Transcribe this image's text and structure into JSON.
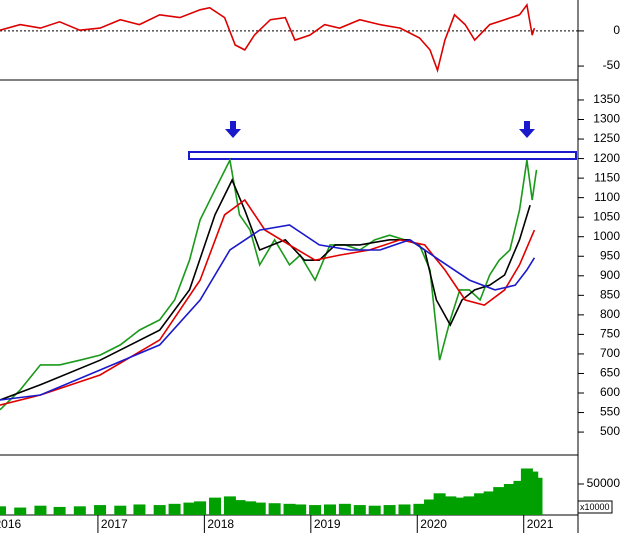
{
  "chart_data": [
    {
      "type": "line",
      "ylim": [
        -67,
        44
      ],
      "yticks": [
        0,
        -50
      ],
      "zero_line": true,
      "series": [
        {
          "color": "#dd0000",
          "x": [
            2016.08,
            2016.27,
            2016.46,
            2016.64,
            2016.83,
            2017.02,
            2017.21,
            2017.39,
            2017.58,
            2017.77,
            2017.96,
            2018.05,
            2018.19,
            2018.29,
            2018.38,
            2018.47,
            2018.62,
            2018.76,
            2018.85,
            2018.99,
            2019.13,
            2019.27,
            2019.46,
            2019.65,
            2019.84,
            2020.02,
            2020.12,
            2020.19,
            2020.26,
            2020.35,
            2020.45,
            2020.54,
            2020.68,
            2020.82,
            2020.96,
            2021.03,
            2021.08,
            2021.1
          ],
          "values": [
            1,
            9,
            4,
            13,
            1,
            4,
            16,
            9,
            23,
            19,
            30,
            33,
            19,
            -20,
            -27,
            -6,
            16,
            19,
            -13,
            -6,
            9,
            4,
            16,
            9,
            4,
            -10,
            -27,
            -56,
            -13,
            23,
            9,
            -13,
            9,
            16,
            23,
            37,
            -6,
            4
          ]
        }
      ]
    },
    {
      "type": "line",
      "ylim": [
        449,
        1396
      ],
      "yticks": [
        500,
        550,
        600,
        650,
        700,
        750,
        800,
        850,
        900,
        950,
        1000,
        1050,
        1100,
        1150,
        1200,
        1250,
        1300,
        1350
      ],
      "series": [
        {
          "color": "#1a9a1a",
          "x": [
            2016.08,
            2016.27,
            2016.46,
            2016.64,
            2016.83,
            2017.02,
            2017.21,
            2017.39,
            2017.58,
            2017.72,
            2017.86,
            2017.96,
            2018.1,
            2018.24,
            2018.33,
            2018.43,
            2018.52,
            2018.66,
            2018.8,
            2018.9,
            2019.04,
            2019.18,
            2019.32,
            2019.46,
            2019.6,
            2019.74,
            2019.88,
            2020.02,
            2020.12,
            2020.21,
            2020.31,
            2020.4,
            2020.49,
            2020.59,
            2020.68,
            2020.77,
            2020.87,
            2020.96,
            2021.03,
            2021.08,
            2021.12
          ],
          "values": [
            557,
            608,
            672,
            672,
            684,
            697,
            723,
            761,
            787,
            838,
            940,
            1043,
            1120,
            1196,
            1056,
            1017,
            928,
            992,
            928,
            953,
            889,
            979,
            979,
            966,
            992,
            1004,
            992,
            979,
            915,
            684,
            787,
            864,
            864,
            838,
            902,
            940,
            966,
            1068,
            1196,
            1094,
            1171
          ]
        },
        {
          "color": "#000000",
          "x": [
            2016.08,
            2016.46,
            2017.02,
            2017.58,
            2017.86,
            2018.1,
            2018.26,
            2018.38,
            2018.52,
            2018.76,
            2018.94,
            2019.08,
            2019.23,
            2019.46,
            2019.74,
            2019.93,
            2020.07,
            2020.18,
            2020.31,
            2020.42,
            2020.54,
            2020.68,
            2020.82,
            2020.96,
            2021.06
          ],
          "values": [
            582,
            621,
            684,
            761,
            864,
            1056,
            1145,
            1068,
            966,
            992,
            940,
            940,
            979,
            979,
            992,
            992,
            966,
            838,
            774,
            838,
            864,
            876,
            902,
            992,
            1081
          ]
        },
        {
          "color": "#e00000",
          "x": [
            2016.08,
            2016.46,
            2017.02,
            2017.58,
            2017.96,
            2018.19,
            2018.38,
            2018.57,
            2018.8,
            2019.04,
            2019.27,
            2019.55,
            2019.84,
            2020.07,
            2020.26,
            2020.45,
            2020.63,
            2020.82,
            2020.96,
            2021.1
          ],
          "values": [
            569,
            595,
            646,
            736,
            889,
            1056,
            1094,
            1017,
            979,
            940,
            953,
            966,
            992,
            979,
            915,
            838,
            825,
            864,
            928,
            1017
          ]
        },
        {
          "color": "#1a1acc",
          "x": [
            2016.08,
            2016.46,
            2017.02,
            2017.58,
            2017.96,
            2018.24,
            2018.52,
            2018.8,
            2019.08,
            2019.37,
            2019.65,
            2019.93,
            2020.21,
            2020.49,
            2020.73,
            2020.92,
            2021.03,
            2021.1
          ],
          "values": [
            582,
            595,
            659,
            723,
            838,
            966,
            1017,
            1030,
            979,
            966,
            966,
            992,
            940,
            889,
            864,
            876,
            915,
            946
          ]
        }
      ]
    },
    {
      "type": "bar",
      "ylim": [
        0,
        93500
      ],
      "yticks": [
        50000
      ],
      "unit_label": "x10000",
      "xlim": [
        2016.08,
        2021.51
      ],
      "xticks": [
        2016,
        2017,
        2018,
        2019,
        2020,
        2021
      ],
      "series": [
        {
          "color": "#00a000",
          "x": [
            2016.08,
            2016.27,
            2016.46,
            2016.64,
            2016.83,
            2017.02,
            2017.21,
            2017.39,
            2017.58,
            2017.72,
            2017.86,
            2017.96,
            2018.1,
            2018.24,
            2018.33,
            2018.43,
            2018.52,
            2018.66,
            2018.8,
            2018.9,
            2019.04,
            2019.18,
            2019.32,
            2019.46,
            2019.6,
            2019.74,
            2019.88,
            2020.02,
            2020.12,
            2020.21,
            2020.31,
            2020.4,
            2020.49,
            2020.59,
            2020.68,
            2020.77,
            2020.87,
            2020.96,
            2021.03,
            2021.08,
            2021.12
          ],
          "values": [
            14000,
            12000,
            15000,
            13000,
            14000,
            16000,
            15000,
            17000,
            16000,
            18000,
            20000,
            22000,
            28000,
            30000,
            24000,
            22000,
            20000,
            19000,
            18000,
            17000,
            16000,
            17000,
            18000,
            16000,
            15000,
            16000,
            17000,
            18000,
            25000,
            35000,
            30000,
            28000,
            30000,
            35000,
            38000,
            45000,
            50000,
            55000,
            75000,
            70000,
            60000
          ]
        }
      ]
    }
  ]
}
